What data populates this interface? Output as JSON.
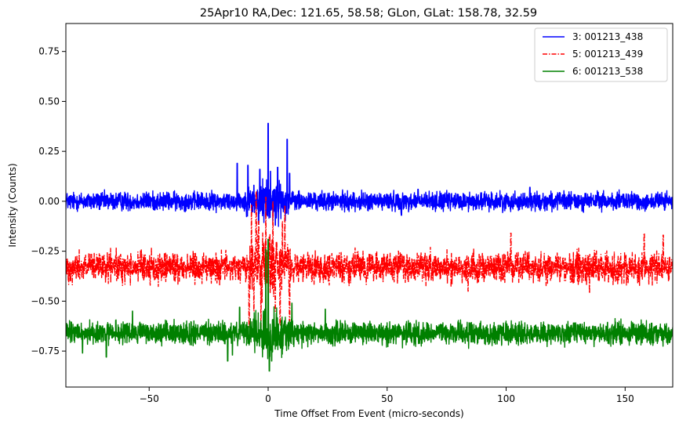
{
  "chart_data": {
    "type": "line",
    "title": "25Apr10 RA,Dec:  121.65,  58.58; GLon, GLat:  158.78,  32.59",
    "xlabel": "Time Offset From Event (micro-seconds)",
    "ylabel": "Intensity (Counts)",
    "xlim": [
      -85,
      170
    ],
    "ylim": [
      -0.93,
      0.89
    ],
    "xticks": [
      -50,
      0,
      50,
      100,
      150
    ],
    "xtick_labels": [
      "−50",
      "0",
      "50",
      "100",
      "150"
    ],
    "yticks": [
      0.75,
      0.5,
      0.25,
      0.0,
      -0.25,
      -0.5,
      -0.75
    ],
    "ytick_labels": [
      "0.75",
      "0.50",
      "0.25",
      "0.00",
      "−0.25",
      "−0.50",
      "−0.75"
    ],
    "grid": false,
    "legend_position": "top-right",
    "series": [
      {
        "name": "3: 001213_438",
        "color": "#0000ff",
        "linestyle": "solid",
        "baseline": 0.0,
        "noise_halfwidth": 0.05,
        "peaks": [
          [
            -13,
            0.19
          ],
          [
            -8.5,
            0.18
          ],
          [
            -6,
            0.08
          ],
          [
            -3.5,
            0.16
          ],
          [
            -1.5,
            0.06
          ],
          [
            0,
            0.39
          ],
          [
            1,
            0.15
          ],
          [
            4,
            0.17
          ],
          [
            8,
            0.31
          ],
          [
            9,
            0.14
          ],
          [
            3,
            -0.12
          ],
          [
            -4,
            -0.11
          ],
          [
            110,
            0.07
          ],
          [
            56,
            -0.07
          ],
          [
            63,
            0.06
          ]
        ]
      },
      {
        "name": "5: 001213_439",
        "color": "#ff0000",
        "linestyle": "dashdot",
        "baseline": -0.33,
        "noise_halfwidth": 0.08,
        "peaks": [
          [
            -8,
            -0.63
          ],
          [
            -7,
            -0.02
          ],
          [
            -5,
            0.05
          ],
          [
            -3,
            -0.63
          ],
          [
            -1,
            0.02
          ],
          [
            0.5,
            -0.18
          ],
          [
            2,
            0.0
          ],
          [
            5,
            -0.62
          ],
          [
            7,
            -0.02
          ],
          [
            9,
            -0.6
          ],
          [
            -4,
            -0.1
          ],
          [
            6,
            -0.1
          ],
          [
            3,
            -0.55
          ],
          [
            -6,
            -0.55
          ],
          [
            102,
            -0.16
          ],
          [
            158,
            -0.16
          ],
          [
            166,
            -0.17
          ],
          [
            84,
            -0.45
          ],
          [
            135,
            -0.46
          ]
        ]
      },
      {
        "name": "6: 001213_538",
        "color": "#008000",
        "linestyle": "solid",
        "baseline": -0.66,
        "noise_halfwidth": 0.06,
        "peaks": [
          [
            0,
            -0.19
          ],
          [
            0.5,
            -0.85
          ],
          [
            -1,
            -0.24
          ],
          [
            1.5,
            -0.8
          ],
          [
            -2,
            -0.55
          ],
          [
            -17,
            -0.8
          ],
          [
            -15,
            -0.77
          ],
          [
            -68,
            -0.78
          ],
          [
            10,
            -0.51
          ],
          [
            24,
            -0.54
          ],
          [
            -57,
            -0.55
          ],
          [
            -12,
            -0.53
          ],
          [
            -78,
            -0.76
          ]
        ]
      }
    ]
  }
}
